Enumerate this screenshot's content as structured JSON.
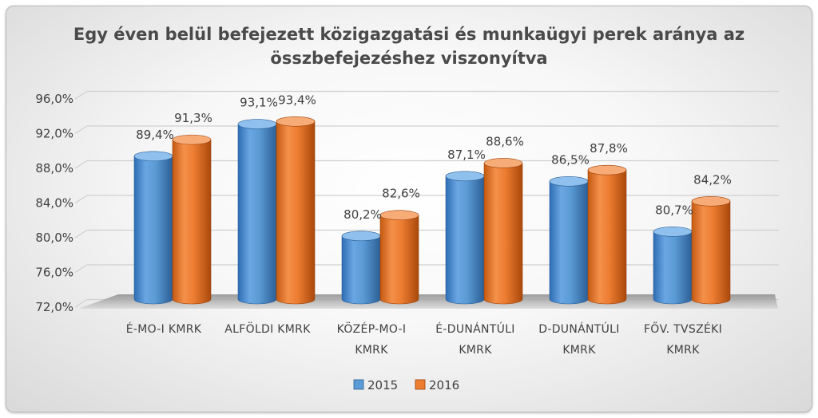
{
  "chart_data": {
    "type": "bar",
    "title": "Egy éven belül befejezett közigazgatási és munkaügyi perek aránya az összbefejezéshez viszonyítva",
    "title_lines": [
      "Egy éven belül befejezett közigazgatási és munkaügyi perek aránya az",
      "összbefejezéshez viszonyítva"
    ],
    "categories": [
      [
        "É-MO-I KMRK"
      ],
      [
        "ALFÖLDI KMRK"
      ],
      [
        "KÖZÉP-MO-I",
        "KMRK"
      ],
      [
        "É-DUNÁNTÚLI",
        "KMRK"
      ],
      [
        "D-DUNÁNTÚLI",
        "KMRK"
      ],
      [
        "FŐV. TVSZÉKI",
        "KMRK"
      ]
    ],
    "series": [
      {
        "name": "2015",
        "color": "#5b9bd5",
        "values": [
          89.4,
          93.1,
          80.2,
          87.1,
          86.5,
          80.7
        ],
        "labels": [
          "89,4%",
          "93,1%",
          "80,2%",
          "87,1%",
          "86,5%",
          "80,7%"
        ]
      },
      {
        "name": "2016",
        "color": "#ed7d31",
        "values": [
          91.3,
          93.4,
          82.6,
          88.6,
          87.8,
          84.2
        ],
        "labels": [
          "91,3%",
          "93,4%",
          "82,6%",
          "88,6%",
          "87,8%",
          "84,2%"
        ]
      }
    ],
    "ylim": [
      72,
      96
    ],
    "yticks": [
      72,
      76,
      80,
      84,
      88,
      92,
      96
    ],
    "ytick_labels": [
      "72,0%",
      "76,0%",
      "80,0%",
      "84,0%",
      "88,0%",
      "92,0%",
      "96,0%"
    ],
    "xlabel": "",
    "ylabel": "",
    "grid": true,
    "legend": "bottom",
    "style": "3d-cylinder"
  }
}
